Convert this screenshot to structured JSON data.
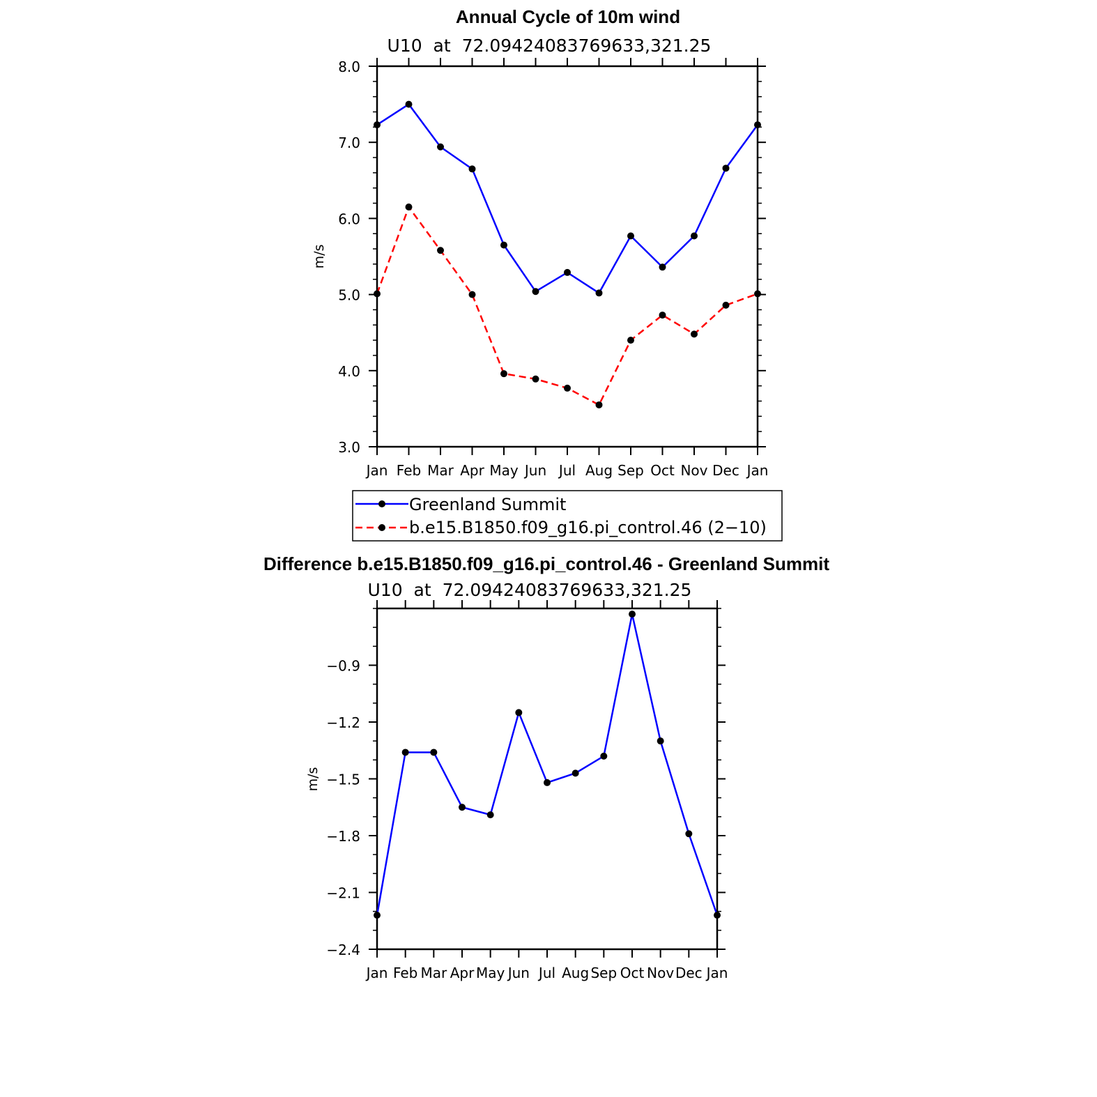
{
  "chart_data": [
    {
      "type": "line",
      "title": "Annual Cycle of 10m wind",
      "subtitle": "U10  at  72.09424083769633,321.25",
      "ylabel": "m/s",
      "xlabel": "",
      "ylim": [
        3.0,
        8.0
      ],
      "yticks": [
        "3.0",
        "4.0",
        "5.0",
        "6.0",
        "7.0",
        "8.0"
      ],
      "ytick_values": [
        3.0,
        4.0,
        5.0,
        6.0,
        7.0,
        8.0
      ],
      "categories": [
        "Jan",
        "Feb",
        "Mar",
        "Apr",
        "May",
        "Jun",
        "Jul",
        "Aug",
        "Sep",
        "Oct",
        "Nov",
        "Dec",
        "Jan"
      ],
      "grid": false,
      "legend_position": "bottom",
      "series": [
        {
          "name": "Greenland Summit",
          "color": "#0000ff",
          "dash": "solid",
          "values": [
            7.23,
            7.5,
            6.94,
            6.65,
            5.65,
            5.04,
            5.29,
            5.02,
            5.77,
            5.36,
            5.77,
            6.66,
            7.23
          ]
        },
        {
          "name": "b.e15.B1850.f09_g16.pi_control.46 (2−10)",
          "color": "#ff0000",
          "dash": "dashed",
          "values": [
            5.01,
            6.15,
            5.58,
            5.0,
            3.96,
            3.89,
            3.77,
            3.55,
            4.4,
            4.73,
            4.48,
            4.86,
            5.01
          ]
        }
      ]
    },
    {
      "type": "line",
      "title": "Difference b.e15.B1850.f09_g16.pi_control.46 - Greenland Summit",
      "subtitle": "U10  at  72.09424083769633,321.25",
      "ylabel": "m/s",
      "xlabel": "",
      "ylim": [
        -2.4,
        -0.6
      ],
      "yticks": [
        "−2.4",
        "−2.1",
        "−1.8",
        "−1.5",
        "−1.2",
        "−0.9"
      ],
      "ytick_values": [
        -2.4,
        -2.1,
        -1.8,
        -1.5,
        -1.2,
        -0.9
      ],
      "categories": [
        "Jan",
        "Feb",
        "Mar",
        "Apr",
        "May",
        "Jun",
        "Jul",
        "Aug",
        "Sep",
        "Oct",
        "Nov",
        "Dec",
        "Jan"
      ],
      "grid": false,
      "series": [
        {
          "color": "#0000ff",
          "dash": "solid",
          "values": [
            -2.22,
            -1.36,
            -1.36,
            -1.65,
            -1.69,
            -1.15,
            -1.52,
            -1.47,
            -1.38,
            -0.63,
            -1.3,
            -1.79,
            -2.22
          ]
        }
      ]
    }
  ]
}
